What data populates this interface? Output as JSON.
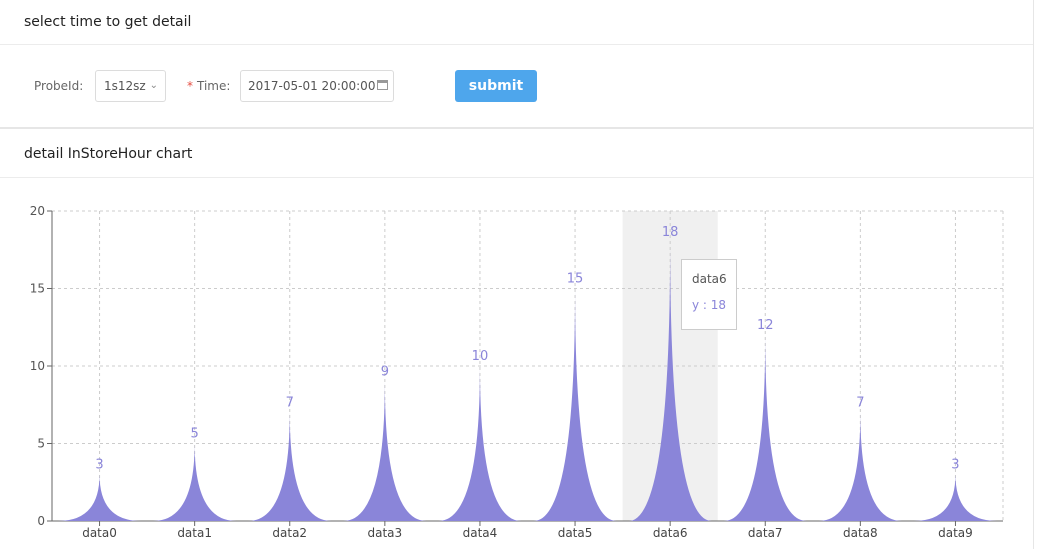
{
  "form_card": {
    "title": "select time to get detail",
    "probe_label": "ProbeId:",
    "probe_value": "1s12sz",
    "time_required_mark": "*",
    "time_label": "Time:",
    "time_value": "2017-05-01 20:00:00",
    "submit_label": "submit"
  },
  "chart_card": {
    "title": "detail InStoreHour chart"
  },
  "tooltip": {
    "category": "data6",
    "value_text": "y : 18"
  },
  "colors": {
    "series": "#8a85d9",
    "button": "#4ea6ec",
    "highlight_band": "#f0f0f0"
  },
  "chart_data": {
    "type": "area",
    "title": "detail InStoreHour chart",
    "categories": [
      "data0",
      "data1",
      "data2",
      "data3",
      "data4",
      "data5",
      "data6",
      "data7",
      "data8",
      "data9"
    ],
    "series": [
      {
        "values": [
          3,
          5,
          7,
          9,
          10,
          15,
          18,
          12,
          7,
          3
        ]
      }
    ],
    "ylim": [
      0,
      20
    ],
    "yticks": [
      0,
      5,
      10,
      15,
      20
    ],
    "grid": true,
    "highlighted_category": "data6",
    "data_labels": true
  }
}
